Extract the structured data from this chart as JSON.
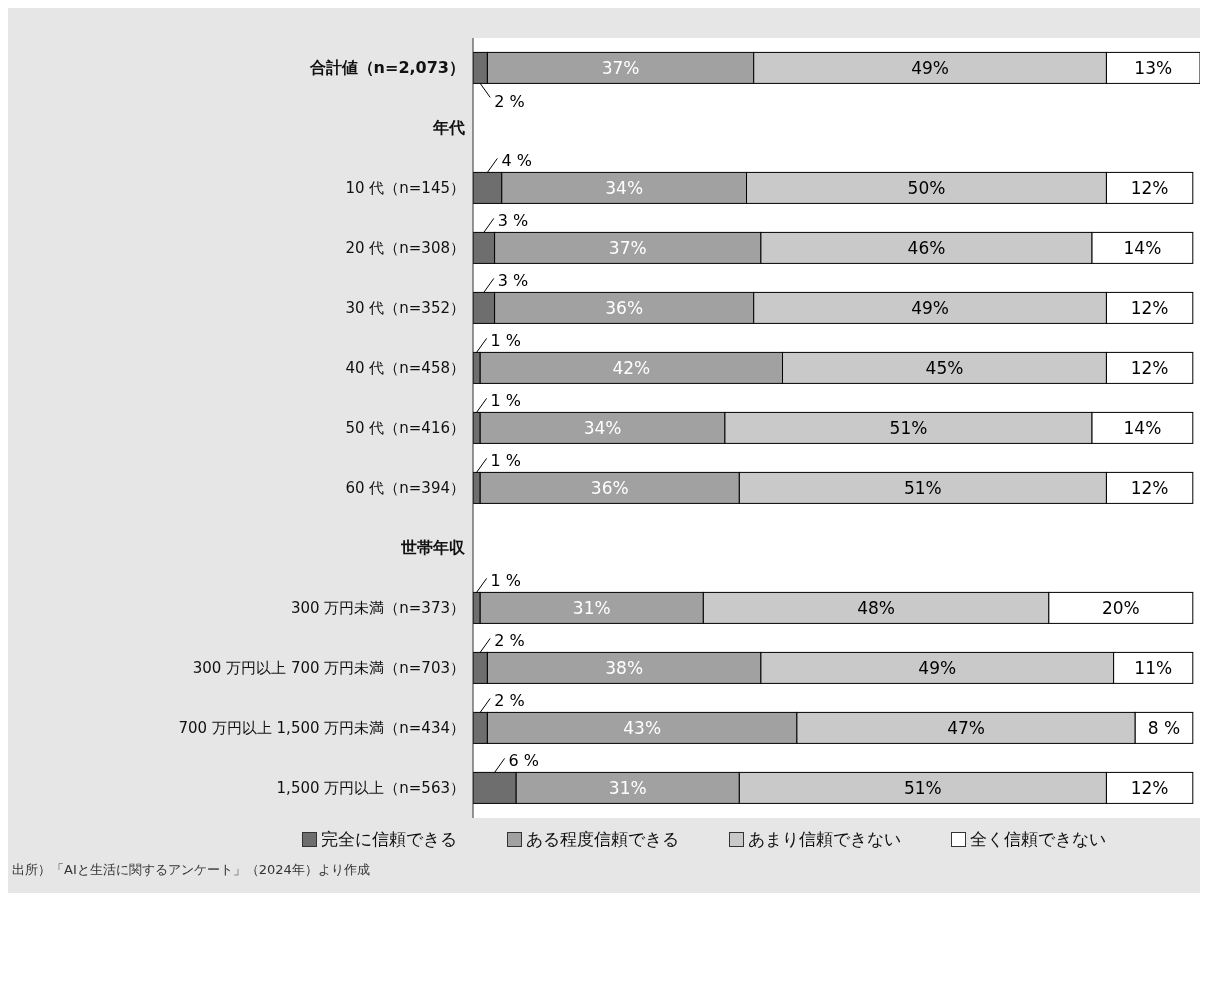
{
  "chart_data": {
    "type": "bar",
    "orientation": "horizontal",
    "stacked": true,
    "tick_labels": "y",
    "legend": "bottom",
    "categories": [
      "合計値（n=2,073）",
      "年代",
      "10 代（n=145）",
      "20 代（n=308）",
      "30 代（n=352）",
      "40 代（n=458）",
      "50 代（n=416）",
      "60 代（n=394）",
      "世帯年収",
      "300 万円未満（n=373）",
      "300 万円以上 700 万円未満（n=703）",
      "700 万円以上 1,500 万円未満（n=434）",
      "1,500 万円以上（n=563）"
    ],
    "series": [
      {
        "name": "完全に信頼できる",
        "color": "#6e6e6e",
        "values": [
          2,
          null,
          4,
          3,
          3,
          1,
          1,
          1,
          null,
          1,
          2,
          2,
          6
        ],
        "value_labels": [
          "2 %",
          null,
          "4 %",
          "3 %",
          "3 %",
          "1 %",
          "1 %",
          "1 %",
          null,
          "1 %",
          "2 %",
          "2 %",
          "6 %"
        ]
      },
      {
        "name": "ある程度信頼できる",
        "color": "#a0a1a0",
        "values": [
          37,
          null,
          34,
          37,
          36,
          42,
          34,
          36,
          null,
          31,
          38,
          43,
          31
        ],
        "value_labels": [
          "37%",
          null,
          "34%",
          "37%",
          "36%",
          "42%",
          "34%",
          "36%",
          null,
          "31%",
          "38%",
          "43%",
          "31%"
        ]
      },
      {
        "name": "あまり信頼できない",
        "color": "#c8c9c8",
        "values": [
          49,
          null,
          50,
          46,
          49,
          45,
          51,
          51,
          null,
          48,
          49,
          47,
          51
        ],
        "value_labels": [
          "49%",
          null,
          "50%",
          "46%",
          "49%",
          "45%",
          "51%",
          "51%",
          null,
          "48%",
          "49%",
          "47%",
          "51%"
        ]
      },
      {
        "name": "全く信頼できない",
        "color": "#ffffff",
        "values": [
          13,
          null,
          12,
          14,
          12,
          12,
          14,
          12,
          null,
          20,
          11,
          8,
          12
        ],
        "value_labels": [
          "13%",
          null,
          "12%",
          "14%",
          "12%",
          "12%",
          "14%",
          "12%",
          null,
          "20%",
          "11%",
          "8 %",
          "12%"
        ]
      }
    ],
    "annotations": [
      "出所）「AIと生活に関するアンケート」（2024年）より作成"
    ]
  }
}
